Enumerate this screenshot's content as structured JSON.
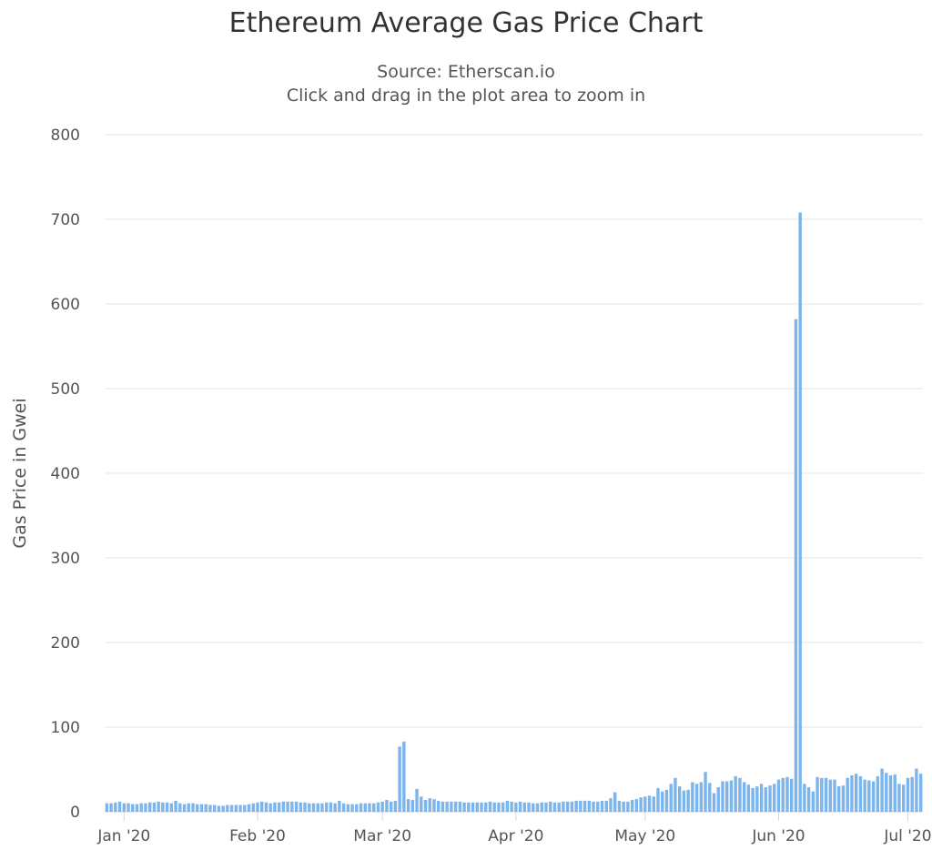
{
  "chart_data": {
    "type": "bar",
    "title": "Ethereum Average Gas Price Chart",
    "subtitle": [
      "Source: Etherscan.io",
      "Click and drag in the plot area to zoom in"
    ],
    "xlabel": "",
    "ylabel": "Gas Price in Gwei",
    "ylim": [
      0,
      800
    ],
    "yticks": [
      0,
      100,
      200,
      300,
      400,
      500,
      600,
      700,
      800
    ],
    "grid": true,
    "legend": "none",
    "color": "#7cb5ec",
    "x_start": "2019-12-28",
    "xticks": [
      {
        "date": "2020-01-01",
        "label": "Jan '20"
      },
      {
        "date": "2020-02-01",
        "label": "Feb '20"
      },
      {
        "date": "2020-03-01",
        "label": "Mar '20"
      },
      {
        "date": "2020-04-01",
        "label": "Apr '20"
      },
      {
        "date": "2020-05-01",
        "label": "May '20"
      },
      {
        "date": "2020-06-01",
        "label": "Jun '20"
      },
      {
        "date": "2020-07-01",
        "label": "Jul '20"
      }
    ],
    "values": [
      10,
      10,
      11,
      12,
      10,
      10,
      9,
      9,
      10,
      10,
      11,
      11,
      12,
      11,
      11,
      10,
      13,
      10,
      9,
      10,
      10,
      9,
      9,
      9,
      8,
      8,
      7,
      7,
      8,
      8,
      8,
      8,
      8,
      9,
      10,
      11,
      12,
      11,
      10,
      11,
      11,
      12,
      12,
      12,
      12,
      11,
      11,
      10,
      10,
      10,
      10,
      11,
      11,
      10,
      13,
      10,
      9,
      9,
      9,
      10,
      10,
      10,
      10,
      11,
      12,
      14,
      12,
      13,
      77,
      83,
      15,
      14,
      27,
      18,
      14,
      16,
      15,
      13,
      12,
      12,
      12,
      12,
      12,
      11,
      11,
      11,
      11,
      11,
      11,
      12,
      11,
      11,
      11,
      13,
      12,
      11,
      12,
      11,
      11,
      10,
      10,
      11,
      11,
      12,
      11,
      11,
      12,
      12,
      12,
      13,
      13,
      13,
      13,
      12,
      12,
      13,
      13,
      16,
      23,
      13,
      12,
      12,
      14,
      15,
      17,
      18,
      19,
      18,
      28,
      24,
      26,
      33,
      40,
      30,
      25,
      26,
      35,
      33,
      35,
      47,
      34,
      22,
      29,
      36,
      36,
      37,
      42,
      40,
      35,
      32,
      28,
      30,
      33,
      29,
      31,
      33,
      38,
      40,
      41,
      39,
      582,
      708,
      33,
      29,
      24,
      41,
      40,
      40,
      38,
      38,
      30,
      31,
      40,
      43,
      45,
      42,
      38,
      37,
      36,
      42,
      51,
      46,
      43,
      44,
      33,
      32,
      40,
      41,
      51,
      45
    ]
  }
}
